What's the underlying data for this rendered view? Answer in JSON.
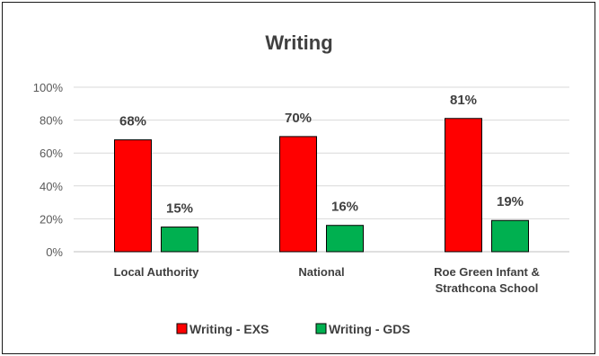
{
  "chart_data": {
    "type": "bar",
    "title": "Writing",
    "categories": [
      [
        "Local Authority"
      ],
      [
        "National"
      ],
      [
        "Roe Green Infant &",
        "Strathcona School"
      ]
    ],
    "series": [
      {
        "name": "Writing - EXS",
        "values": [
          68,
          70,
          81
        ],
        "labels": [
          "68%",
          "70%",
          "81%"
        ],
        "color": "#ff0000"
      },
      {
        "name": "Writing - GDS",
        "values": [
          15,
          16,
          19
        ],
        "labels": [
          "15%",
          "16%",
          "19%"
        ],
        "color": "#00b050"
      }
    ],
    "ylim": [
      0,
      100
    ],
    "yticks": [
      0,
      20,
      40,
      60,
      80,
      100
    ],
    "ytick_labels": [
      "0%",
      "20%",
      "40%",
      "60%",
      "80%",
      "100%"
    ],
    "grid": true,
    "legend": "bottom",
    "colors": {
      "gridline": "#d9d9d9",
      "axis": "#bfbfbf",
      "bar_border": "#000000"
    }
  }
}
